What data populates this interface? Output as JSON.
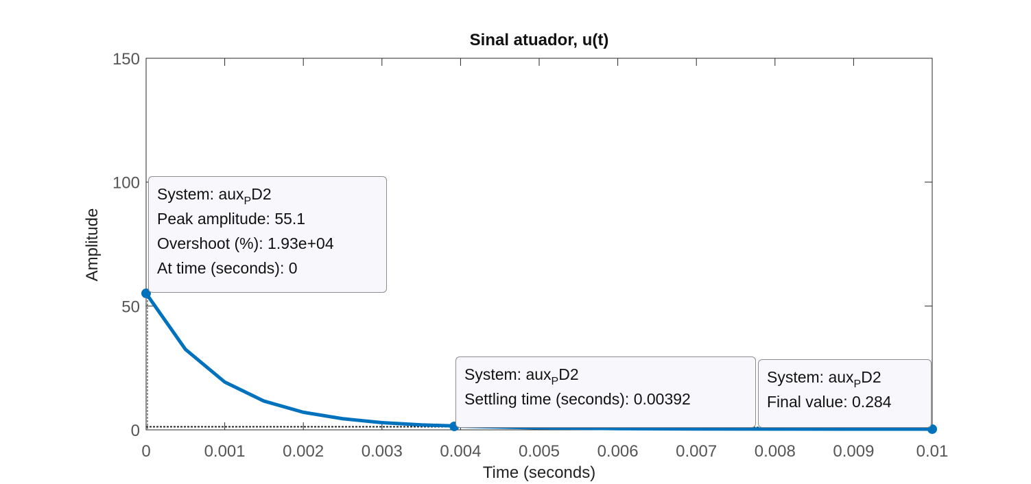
{
  "chart_data": {
    "type": "line",
    "title": "Sinal atuador, u(t)",
    "xlabel": "Time (seconds)",
    "ylabel": "Amplitude",
    "xlim": [
      0,
      0.01
    ],
    "ylim": [
      0,
      150
    ],
    "x_ticks": [
      "0",
      "0.001",
      "0.002",
      "0.003",
      "0.004",
      "0.005",
      "0.006",
      "0.007",
      "0.008",
      "0.009",
      "0.01"
    ],
    "y_ticks": [
      "0",
      "50",
      "100",
      "150"
    ],
    "grid": false,
    "series": [
      {
        "color": "#0072BD",
        "x": [
          0,
          0.0005,
          0.001,
          0.0015,
          0.002,
          0.0025,
          0.003,
          0.0035,
          0.004,
          0.005,
          0.006,
          0.007,
          0.008,
          0.009,
          0.01
        ],
        "y": [
          55.1,
          32.5,
          19.3,
          11.6,
          7.1,
          4.5,
          2.9,
          2.0,
          1.5,
          0.8,
          0.5,
          0.35,
          0.3,
          0.29,
          0.284
        ]
      }
    ],
    "markers": [
      {
        "x": 0,
        "y": 55.1
      },
      {
        "x": 0.00392,
        "y": 1.4
      },
      {
        "x": 0.01,
        "y": 0.284
      }
    ]
  },
  "datatips": [
    {
      "system_prefix": "System: aux",
      "system_sub": "P",
      "system_suffix": "D2",
      "lines": [
        "Peak amplitude: 55.1",
        "Overshoot (%): 1.93e+04",
        "At time (seconds): 0"
      ]
    },
    {
      "system_prefix": "System: aux",
      "system_sub": "P",
      "system_suffix": "D2",
      "lines": [
        "Settling time (seconds): 0.00392"
      ]
    },
    {
      "system_prefix": "System: aux",
      "system_sub": "P",
      "system_suffix": "D2",
      "lines": [
        "Final value: 0.284"
      ]
    }
  ]
}
